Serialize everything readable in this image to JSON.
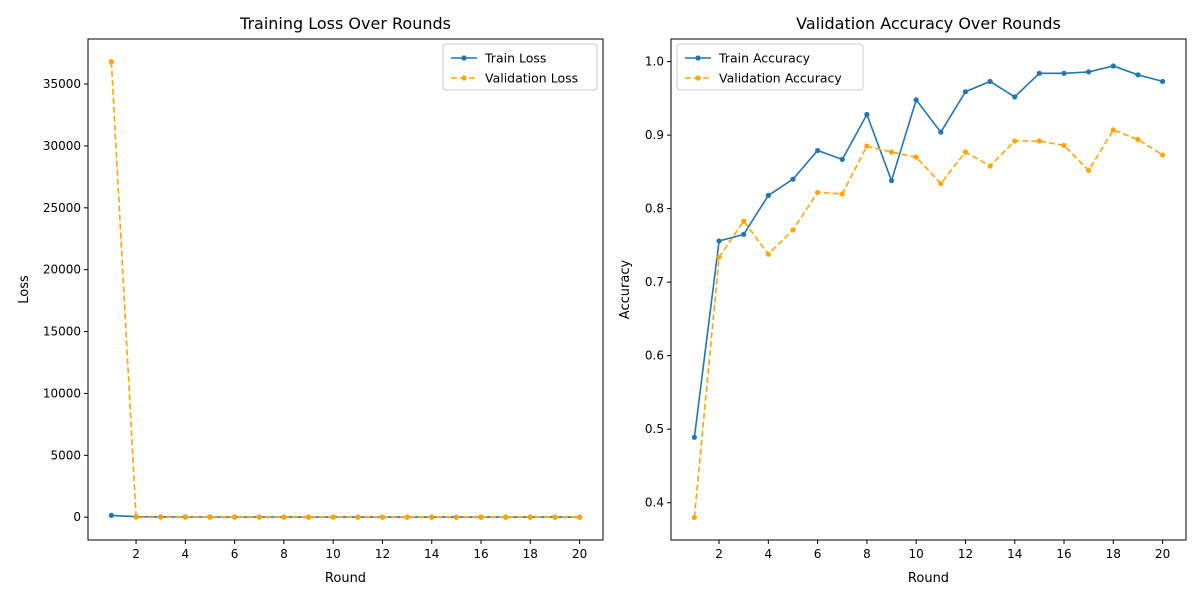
{
  "chart_data": [
    {
      "type": "line",
      "title": "Training Loss Over Rounds",
      "xlabel": "Round",
      "ylabel": "Loss",
      "xlim": [
        0.05,
        20.95
      ],
      "ylim": [
        -1840,
        38640
      ],
      "xticks": [
        2,
        4,
        6,
        8,
        10,
        12,
        14,
        16,
        18,
        20
      ],
      "yticks": [
        0,
        5000,
        10000,
        15000,
        20000,
        25000,
        30000,
        35000
      ],
      "legend_position": "top-right",
      "grid": false,
      "x": [
        1,
        2,
        3,
        4,
        5,
        6,
        7,
        8,
        9,
        10,
        11,
        12,
        13,
        14,
        15,
        16,
        17,
        18,
        19,
        20
      ],
      "series": [
        {
          "name": "Train Loss",
          "color": "#1f77b4",
          "style": "solid",
          "values": [
            150,
            40,
            25,
            20,
            18,
            16,
            15,
            14,
            13,
            12,
            12,
            11,
            10,
            10,
            9,
            9,
            8,
            8,
            8,
            7
          ]
        },
        {
          "name": "Validation Loss",
          "color": "#ffa500",
          "style": "dashed",
          "values": [
            36800,
            2,
            1.5,
            1.2,
            1.1,
            1,
            1,
            0.9,
            0.9,
            0.9,
            0.8,
            0.8,
            0.8,
            0.8,
            0.7,
            0.7,
            0.7,
            0.7,
            0.7,
            0.7
          ]
        }
      ]
    },
    {
      "type": "line",
      "title": "Validation Accuracy Over Rounds",
      "xlabel": "Round",
      "ylabel": "Accuracy",
      "xlim": [
        0.05,
        20.95
      ],
      "ylim": [
        0.3493,
        1.0307
      ],
      "xticks": [
        2,
        4,
        6,
        8,
        10,
        12,
        14,
        16,
        18,
        20
      ],
      "yticks": [
        0.4,
        0.5,
        0.6,
        0.7,
        0.8,
        0.9,
        1.0
      ],
      "legend_position": "top-left",
      "grid": false,
      "x": [
        1,
        2,
        3,
        4,
        5,
        6,
        7,
        8,
        9,
        10,
        11,
        12,
        13,
        14,
        15,
        16,
        17,
        18,
        19,
        20
      ],
      "series": [
        {
          "name": "Train Accuracy",
          "color": "#1f77b4",
          "style": "solid",
          "values": [
            0.489,
            0.756,
            0.765,
            0.818,
            0.84,
            0.879,
            0.867,
            0.928,
            0.838,
            0.948,
            0.904,
            0.959,
            0.973,
            0.952,
            0.984,
            0.984,
            0.986,
            0.994,
            0.982,
            0.973
          ]
        },
        {
          "name": "Validation Accuracy",
          "color": "#ffa500",
          "style": "dashed",
          "values": [
            0.38,
            0.734,
            0.783,
            0.738,
            0.771,
            0.822,
            0.82,
            0.885,
            0.877,
            0.87,
            0.834,
            0.877,
            0.858,
            0.892,
            0.892,
            0.886,
            0.852,
            0.907,
            0.894,
            0.873
          ]
        }
      ]
    }
  ]
}
